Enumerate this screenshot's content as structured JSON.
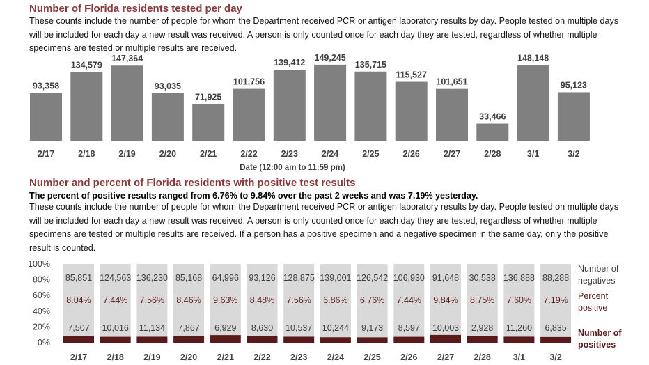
{
  "section1": {
    "title": "Number of Florida residents tested per day",
    "description": "These counts include the number of people for whom the Department received PCR or antigen laboratory results by day. People tested on multiple days will be included for each day a new result was received. A person is only counted once for each day they are tested, regardless of whether multiple specimens are tested or multiple results are received."
  },
  "section2": {
    "title": "Number and percent of Florida residents with positive test results",
    "summary": "The percent of positive results ranged from 6.76% to 9.84% over the past 2 weeks and was 7.19% yesterday.",
    "description": "These counts include the number of people for whom the Department received PCR or antigen laboratory results by day. People tested on multiple days will be included for each day a new result was received. A person is only counted once for each day they are tested, regardless of whether multiple specimens are tested or multiple results are received. If a person has a positive specimen and a negative specimen in the same day, only the positive result is counted."
  },
  "colors": {
    "bar": "#808080",
    "negative": "#d9d9d9",
    "positive": "#5b1a1a",
    "title": "#8b3a3a",
    "legend_text": "#5b1a1a"
  },
  "chart_data": [
    {
      "type": "bar",
      "title": "Number of Florida residents tested per day",
      "xlabel": "Date (12:00 am to 11:59 pm)",
      "categories": [
        "2/17",
        "2/18",
        "2/19",
        "2/20",
        "2/21",
        "2/22",
        "2/23",
        "2/24",
        "2/25",
        "2/26",
        "2/27",
        "2/28",
        "3/1",
        "3/2"
      ],
      "values": [
        93358,
        134579,
        147364,
        93035,
        71925,
        101756,
        139412,
        149245,
        135715,
        115527,
        101651,
        33466,
        148148,
        95123
      ],
      "value_labels": [
        "93,358",
        "134,579",
        "147,364",
        "93,035",
        "71,925",
        "101,756",
        "139,412",
        "149,245",
        "135,715",
        "115,527",
        "101,651",
        "33,466",
        "148,148",
        "95,123"
      ],
      "ylim": [
        0,
        160000
      ]
    },
    {
      "type": "bar",
      "stacked": "percent",
      "title": "Number and percent of Florida residents with positive test results",
      "categories": [
        "2/17",
        "2/18",
        "2/19",
        "2/20",
        "2/21",
        "2/22",
        "2/23",
        "2/24",
        "2/25",
        "2/26",
        "2/27",
        "2/28",
        "3/1",
        "3/2"
      ],
      "yticks": [
        "100%",
        "80%",
        "60%",
        "40%",
        "20%",
        "0%"
      ],
      "series": [
        {
          "name": "Number of negatives",
          "values": [
            85851,
            124563,
            136230,
            85168,
            64996,
            93126,
            128875,
            139001,
            126542,
            106930,
            91648,
            30538,
            136888,
            88288
          ],
          "labels": [
            "85,851",
            "124,563",
            "136,230",
            "85,168",
            "64,996",
            "93,126",
            "128,875",
            "139,001",
            "126,542",
            "106,930",
            "91,648",
            "30,538",
            "136,888",
            "88,288"
          ]
        },
        {
          "name": "Number of positives",
          "values": [
            7507,
            10016,
            11134,
            7867,
            6929,
            8630,
            10537,
            10244,
            9173,
            8597,
            10003,
            2928,
            11260,
            6835
          ],
          "labels": [
            "7,507",
            "10,016",
            "11,134",
            "7,867",
            "6,929",
            "8,630",
            "10,537",
            "10,244",
            "9,173",
            "8,597",
            "10,003",
            "2,928",
            "11,260",
            "6,835"
          ]
        }
      ],
      "percent_positive": {
        "name": "Percent positive",
        "values": [
          8.04,
          7.44,
          7.56,
          8.46,
          9.63,
          8.48,
          7.56,
          6.86,
          6.76,
          7.44,
          9.84,
          8.75,
          7.6,
          7.19
        ],
        "labels": [
          "8.04%",
          "7.44%",
          "7.56%",
          "8.46%",
          "9.63%",
          "8.48%",
          "7.56%",
          "6.86%",
          "6.76%",
          "7.44%",
          "9.84%",
          "8.75%",
          "7.60%",
          "7.19%"
        ]
      },
      "legend": {
        "negatives": [
          "Number of",
          "negatives"
        ],
        "percent": [
          "Percent",
          "positive"
        ],
        "positives": [
          "Number of",
          "positives"
        ]
      }
    }
  ]
}
